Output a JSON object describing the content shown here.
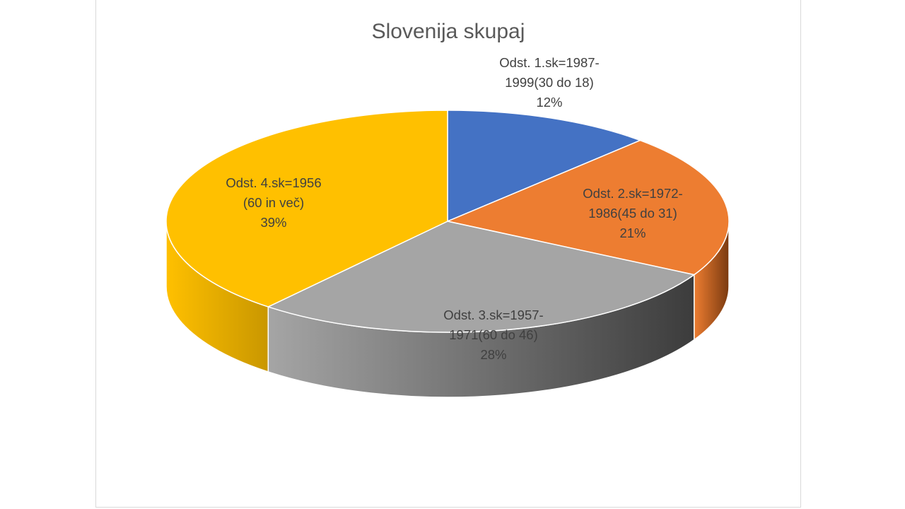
{
  "chart_data": {
    "type": "pie",
    "title": "Slovenija skupaj",
    "style": "3d-pie",
    "slices": [
      {
        "lines": [
          "Odst. 1.sk=1987-",
          "1999(30 do 18)"
        ],
        "percent_label": "12%",
        "value": 12,
        "color": "#4472C4",
        "side_dark": "#2F528F"
      },
      {
        "lines": [
          "Odst. 2.sk=1972-",
          "1986(45 do 31)"
        ],
        "percent_label": "21%",
        "value": 21,
        "color": "#ED7D31",
        "side_dark": "#7A3A10"
      },
      {
        "lines": [
          "Odst. 3.sk=1957-",
          "1971(60 do 46)"
        ],
        "percent_label": "28%",
        "value": 28,
        "color": "#A5A5A5",
        "side_dark": "#3C3C3C"
      },
      {
        "lines": [
          "Odst. 4.sk=1956",
          "(60 in več)"
        ],
        "percent_label": "39%",
        "value": 39,
        "color": "#FFC000",
        "side_dark": "#C99700"
      }
    ]
  }
}
